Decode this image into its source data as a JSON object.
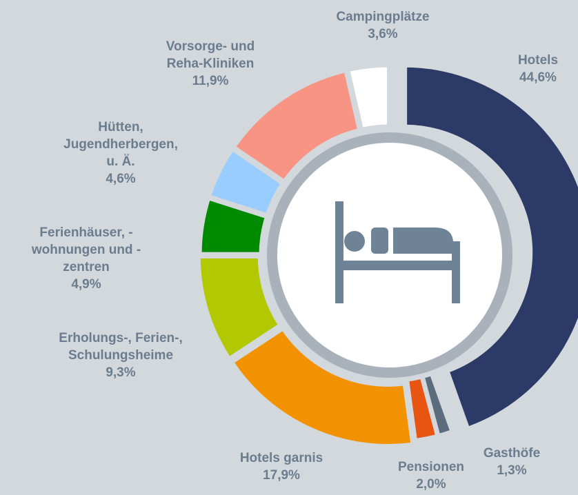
{
  "chart_data": {
    "type": "donut",
    "categories": [
      "Hotels",
      "Gasthöfe",
      "Pensionen",
      "Hotels garnis",
      "Erholungs-, Ferien-,\nSchulungsheime",
      "Ferienhäuser, -\nwohnungen und -\nzentren",
      "Hütten,\nJugendherbergen,\nu. Ä.",
      "Vorsorge- und\nReha-Kliniken",
      "Campingplätze"
    ],
    "values": [
      44.6,
      1.3,
      2.0,
      17.9,
      9.3,
      4.9,
      4.6,
      11.9,
      3.6
    ],
    "value_labels": [
      "44,6%",
      "1,3%",
      "2,0%",
      "17,9%",
      "9,3%",
      "4,9%",
      "4,6%",
      "11,9%",
      "3,6%"
    ],
    "colors": [
      "#2b3a67",
      "#5b6c7c",
      "#e85412",
      "#f39200",
      "#b2c800",
      "#008a00",
      "#99ccff",
      "#f79483",
      "#ffffff"
    ]
  }
}
